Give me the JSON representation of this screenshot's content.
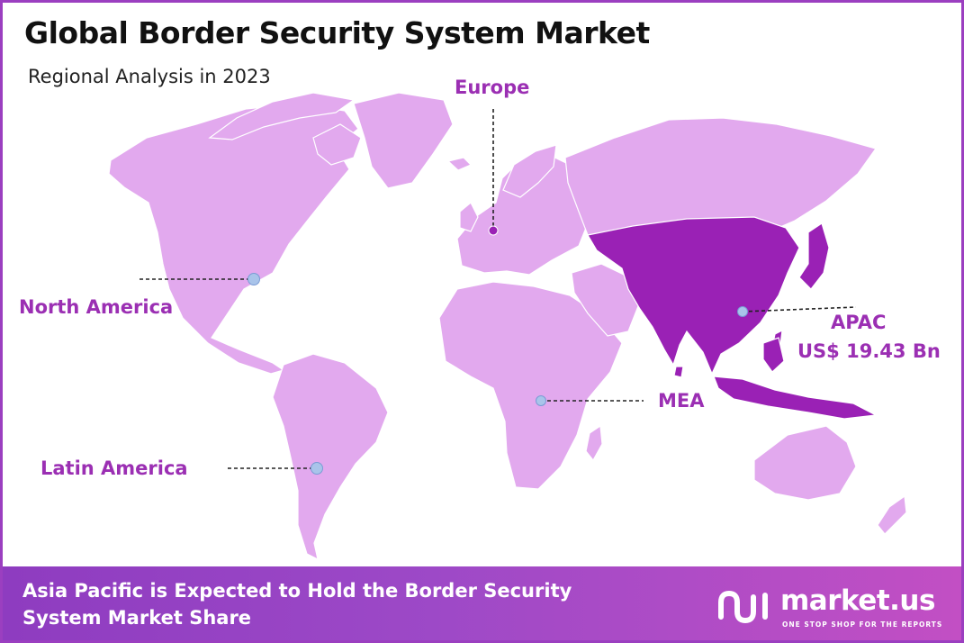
{
  "header": {
    "title": "Global Border Security System Market",
    "subtitle": "Regional Analysis in 2023"
  },
  "regions": [
    {
      "name": "Europe",
      "value": ""
    },
    {
      "name": "North America",
      "value": ""
    },
    {
      "name": "APAC",
      "value": "US$ 19.43 Bn"
    },
    {
      "name": "MEA",
      "value": ""
    },
    {
      "name": "Latin America",
      "value": ""
    }
  ],
  "highlighted_region": "APAC",
  "colors": {
    "land": "#e2a9ee",
    "highlight": "#9a21b5",
    "label": "#9b2fb3",
    "marker": "#a9c4ea",
    "border": "#9b3fc0"
  },
  "footer": {
    "headline": "Asia Pacific is Expected to Hold the Border Security System Market Share",
    "brand_name": "market.us",
    "brand_tagline": "ONE STOP SHOP FOR THE REPORTS"
  }
}
